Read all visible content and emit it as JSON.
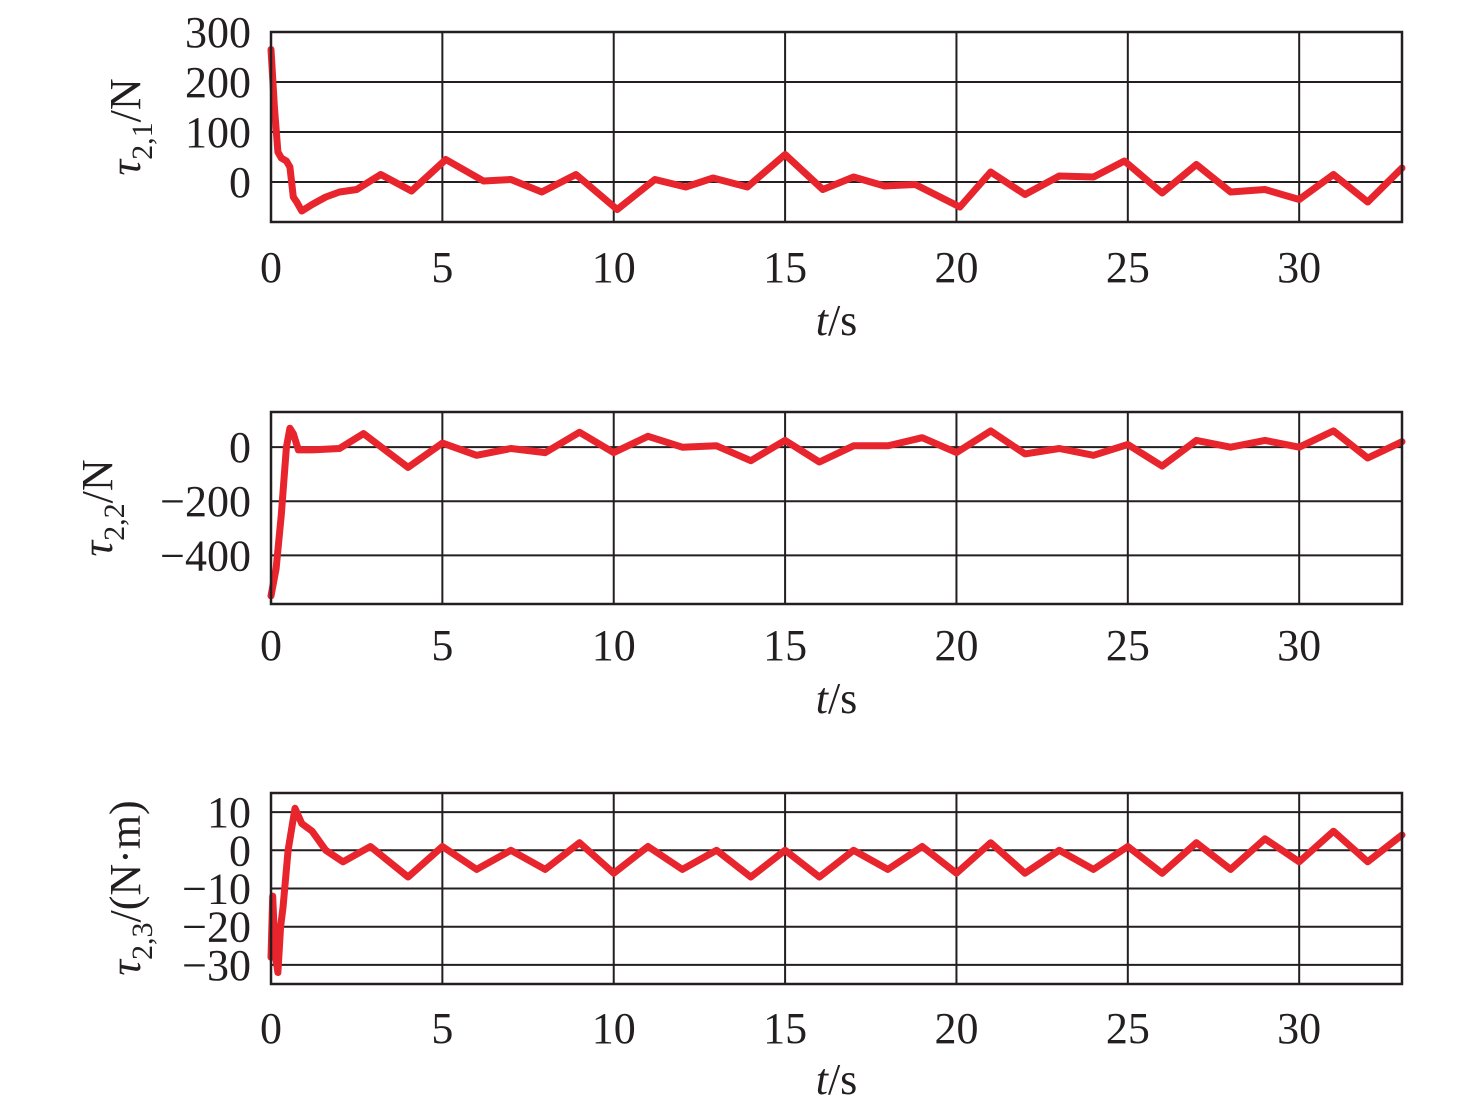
{
  "colors": {
    "series": "#e8242c",
    "axis": "#231f20"
  },
  "chart_data": [
    {
      "type": "line",
      "xlabel": {
        "var": "t",
        "unit": "/s"
      },
      "ylabel": {
        "sym": "τ",
        "sub": "2,1",
        "unit": "/N"
      },
      "xlim": [
        0,
        33
      ],
      "ylim": [
        -80,
        300
      ],
      "xticks": [
        0,
        5,
        10,
        15,
        20,
        25,
        30
      ],
      "xtick_labels": [
        "0",
        "5",
        "10",
        "15",
        "20",
        "25",
        "30"
      ],
      "yticks": [
        0,
        100,
        200,
        300
      ],
      "ytick_labels": [
        "0",
        "100",
        "200",
        "300"
      ],
      "grid": true,
      "series": [
        {
          "x": [
            0,
            0.1,
            0.2,
            0.3,
            0.45,
            0.55,
            0.65,
            0.75,
            0.9,
            1.2,
            1.6,
            2.0,
            2.5,
            3.2,
            4.1,
            5.1,
            6.2,
            7.0,
            7.9,
            8.9,
            10.1,
            11.2,
            12.1,
            12.9,
            13.9,
            15.0,
            16.1,
            17.0,
            17.9,
            18.8,
            20.1,
            21.0,
            22.0,
            23.0,
            24.0,
            24.9,
            26.0,
            27.0,
            28.0,
            29.0,
            30.0,
            31.0,
            32.0,
            33.0
          ],
          "y": [
            265,
            150,
            60,
            48,
            42,
            30,
            -30,
            -40,
            -58,
            -45,
            -30,
            -20,
            -15,
            15,
            -18,
            45,
            2,
            5,
            -20,
            15,
            -55,
            5,
            -10,
            8,
            -10,
            55,
            -15,
            10,
            -8,
            -5,
            -50,
            20,
            -25,
            12,
            10,
            42,
            -22,
            35,
            -20,
            -15,
            -35,
            15,
            -40,
            28
          ]
        }
      ]
    },
    {
      "type": "line",
      "xlabel": {
        "var": "t",
        "unit": "/s"
      },
      "ylabel": {
        "sym": "τ",
        "sub": "2,2",
        "unit": "/N"
      },
      "xlim": [
        0,
        33
      ],
      "ylim": [
        -580,
        130
      ],
      "xticks": [
        0,
        5,
        10,
        15,
        20,
        25,
        30
      ],
      "xtick_labels": [
        "0",
        "5",
        "10",
        "15",
        "20",
        "25",
        "30"
      ],
      "yticks": [
        -400,
        -200,
        0
      ],
      "ytick_labels": [
        "−400",
        "−200",
        "0"
      ],
      "grid": true,
      "series": [
        {
          "x": [
            0,
            0.15,
            0.3,
            0.45,
            0.55,
            0.65,
            0.8,
            1.2,
            2.0,
            2.7,
            4.0,
            5.0,
            6.0,
            7.0,
            8.0,
            9.0,
            10.0,
            11.0,
            12.0,
            13.0,
            14.0,
            15.0,
            16.0,
            17.0,
            18.0,
            19.0,
            20.0,
            21.0,
            22.0,
            23.0,
            24.0,
            25.0,
            26.0,
            27.0,
            28.0,
            29.0,
            30.0,
            31.0,
            32.0,
            33.0
          ],
          "y": [
            -550,
            -450,
            -250,
            0,
            70,
            50,
            -10,
            -10,
            -5,
            50,
            -75,
            15,
            -30,
            -5,
            -20,
            55,
            -20,
            40,
            0,
            5,
            -50,
            25,
            -55,
            5,
            5,
            35,
            -20,
            60,
            -25,
            -5,
            -30,
            10,
            -70,
            25,
            0,
            25,
            0,
            60,
            -40,
            20
          ]
        }
      ]
    },
    {
      "type": "line",
      "xlabel": {
        "var": "t",
        "unit": "/s"
      },
      "ylabel": {
        "sym": "τ",
        "sub": "2,3",
        "unit": "/(N·m)"
      },
      "xlim": [
        0,
        33
      ],
      "ylim": [
        -35,
        15
      ],
      "xticks": [
        0,
        5,
        10,
        15,
        20,
        25,
        30
      ],
      "xtick_labels": [
        "0",
        "5",
        "10",
        "15",
        "20",
        "25",
        "30"
      ],
      "yticks": [
        -30,
        -20,
        -10,
        0,
        10
      ],
      "ytick_labels": [
        "−30",
        "−20",
        "−10",
        "0",
        "10"
      ],
      "grid": true,
      "series": [
        {
          "x": [
            0,
            0.05,
            0.12,
            0.2,
            0.28,
            0.35,
            0.5,
            0.7,
            0.9,
            1.2,
            1.6,
            2.1,
            2.9,
            4.0,
            5.0,
            6.0,
            7.0,
            8.0,
            9.0,
            10.0,
            11.0,
            12.0,
            13.0,
            14.0,
            15.0,
            16.0,
            17.0,
            18.0,
            19.0,
            20.0,
            21.0,
            22.0,
            23.0,
            24.0,
            25.0,
            26.0,
            27.0,
            28.0,
            29.0,
            30.0,
            31.0,
            32.0,
            33.0
          ],
          "y": [
            -28,
            -12,
            -27,
            -32,
            -20,
            -15,
            0,
            11,
            7,
            5,
            0,
            -3,
            1,
            -7,
            1,
            -5,
            0,
            -5,
            2,
            -6,
            1,
            -5,
            0,
            -7,
            0,
            -7,
            0,
            -5,
            1,
            -6,
            2,
            -6,
            0,
            -5,
            1,
            -6,
            2,
            -5,
            3,
            -3,
            5,
            -3,
            4
          ]
        }
      ]
    }
  ]
}
